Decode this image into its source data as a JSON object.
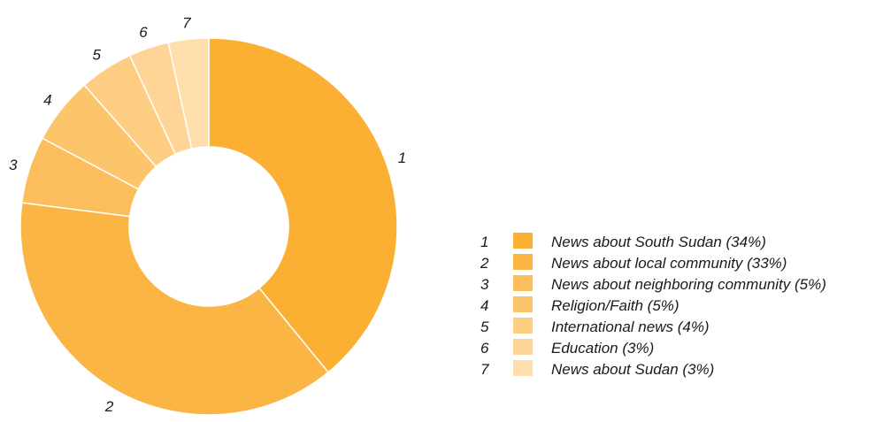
{
  "chart_data": {
    "type": "pie",
    "variant": "donut",
    "categories": [
      "News about South Sudan",
      "News about local community",
      "News about neighboring community",
      "Religion/Faith",
      "International news",
      "Education",
      "News about Sudan"
    ],
    "values": [
      34,
      33,
      5,
      5,
      4,
      3,
      3
    ],
    "slice_numbers": [
      "1",
      "2",
      "3",
      "4",
      "5",
      "6",
      "7"
    ],
    "legend_labels": [
      "News about South Sudan (34%)",
      "News about local community (33%)",
      "News about neighboring community (5%)",
      "Religion/Faith (5%)",
      "International news (4%)",
      "Education (3%)",
      "News about Sudan (3%)"
    ],
    "colors": [
      "#FBB033",
      "#FBB545",
      "#FCBE5C",
      "#FDC56B",
      "#FDCD82",
      "#FED597",
      "#FEDEAD"
    ],
    "legend_position": "right"
  }
}
